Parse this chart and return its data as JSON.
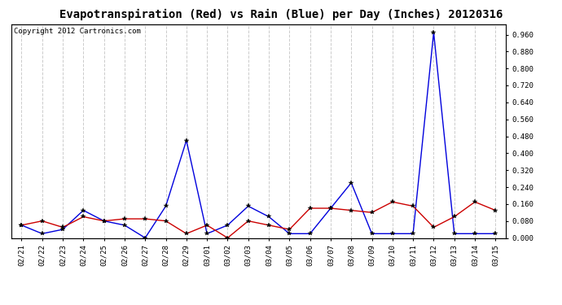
{
  "title": "Evapotranspiration (Red) vs Rain (Blue) per Day (Inches) 20120316",
  "copyright": "Copyright 2012 Cartronics.com",
  "dates": [
    "02/21",
    "02/22",
    "02/23",
    "02/24",
    "02/25",
    "02/26",
    "02/27",
    "02/28",
    "02/29",
    "03/01",
    "03/02",
    "03/03",
    "03/04",
    "03/05",
    "03/06",
    "03/07",
    "03/08",
    "03/09",
    "03/10",
    "03/11",
    "03/12",
    "03/13",
    "03/14",
    "03/15"
  ],
  "et_red": [
    0.06,
    0.08,
    0.05,
    0.1,
    0.08,
    0.09,
    0.09,
    0.08,
    0.02,
    0.06,
    0.0,
    0.08,
    0.06,
    0.04,
    0.14,
    0.14,
    0.13,
    0.12,
    0.17,
    0.15,
    0.05,
    0.1,
    0.17,
    0.13
  ],
  "rain_blue": [
    0.06,
    0.02,
    0.04,
    0.13,
    0.08,
    0.06,
    0.0,
    0.15,
    0.46,
    0.02,
    0.06,
    0.15,
    0.1,
    0.02,
    0.02,
    0.14,
    0.26,
    0.02,
    0.02,
    0.02,
    0.97,
    0.02,
    0.02,
    0.02
  ],
  "ylim": [
    0.0,
    1.008
  ],
  "yticks": [
    0.0,
    0.08,
    0.16,
    0.24,
    0.32,
    0.4,
    0.48,
    0.56,
    0.64,
    0.72,
    0.8,
    0.88,
    0.96
  ],
  "bg_color": "#ffffff",
  "plot_bg": "#ffffff",
  "red_color": "#cc0000",
  "blue_color": "#0000dd",
  "grid_color": "#cccccc",
  "title_fontsize": 10,
  "copyright_fontsize": 6.5
}
